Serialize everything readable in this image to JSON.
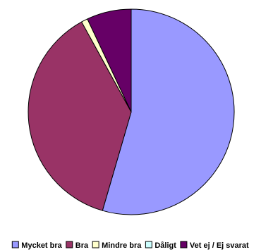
{
  "chart_data": {
    "type": "pie",
    "title": "",
    "slices": [
      {
        "label": "Mycket bra",
        "value": 54.5,
        "color": "#9999ff"
      },
      {
        "label": "Bra",
        "value": 37.5,
        "color": "#993366"
      },
      {
        "label": "Mindre bra",
        "value": 1.0,
        "color": "#ffffcc"
      },
      {
        "label": "Dåligt",
        "value": 0.0,
        "color": "#ccffff"
      },
      {
        "label": "Vet ej / Ej svarat",
        "value": 7.0,
        "color": "#660066"
      }
    ],
    "legend_position": "bottom"
  }
}
